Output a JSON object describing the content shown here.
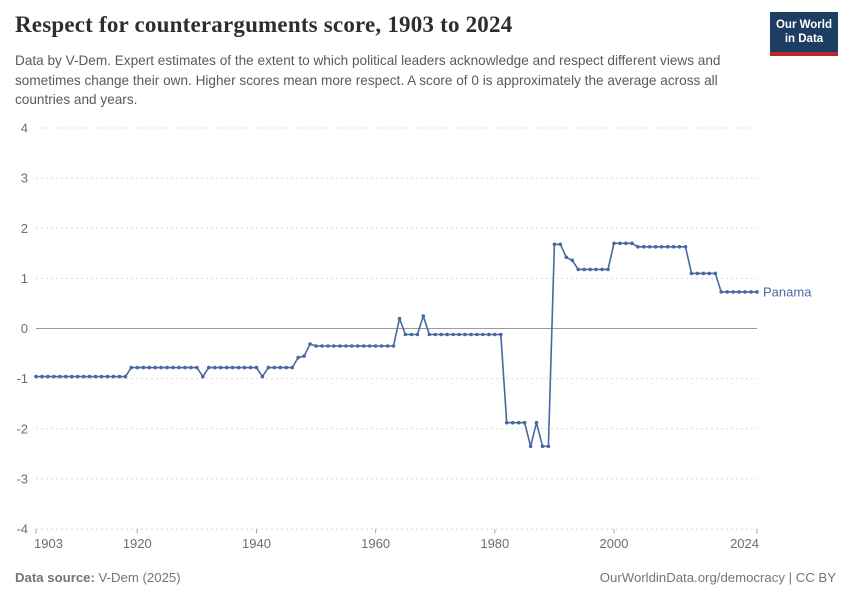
{
  "chart_data": {
    "type": "line",
    "title": "Respect for counterarguments score, 1903 to 2024",
    "subtitle": "Data by V-Dem. Expert estimates of the extent to which political leaders acknowledge and respect different views and sometimes change their own. Higher scores mean more respect. A score of 0 is approximately the average across all countries and years.",
    "xlim": [
      1903,
      2024
    ],
    "ylim": [
      -4,
      4
    ],
    "x_ticks": [
      1903,
      1920,
      1940,
      1960,
      1980,
      2000,
      2024
    ],
    "y_ticks": [
      4,
      3,
      2,
      1,
      0,
      -1,
      -2,
      -3,
      -4
    ],
    "grid": "horizontal-dashed",
    "zero_line": true,
    "legend_position": "end-of-line-label",
    "series": [
      {
        "name": "Panama",
        "color": "#4868a0",
        "year_start": 1903,
        "year_end": 2024,
        "values": [
          -0.96,
          -0.96,
          -0.96,
          -0.96,
          -0.96,
          -0.96,
          -0.96,
          -0.96,
          -0.96,
          -0.96,
          -0.96,
          -0.96,
          -0.96,
          -0.96,
          -0.96,
          -0.96,
          -0.78,
          -0.78,
          -0.78,
          -0.78,
          -0.78,
          -0.78,
          -0.78,
          -0.78,
          -0.78,
          -0.78,
          -0.78,
          -0.78,
          -0.96,
          -0.78,
          -0.78,
          -0.78,
          -0.78,
          -0.78,
          -0.78,
          -0.78,
          -0.78,
          -0.78,
          -0.96,
          -0.78,
          -0.78,
          -0.78,
          -0.78,
          -0.78,
          -0.58,
          -0.55,
          -0.31,
          -0.35,
          -0.35,
          -0.35,
          -0.35,
          -0.35,
          -0.35,
          -0.35,
          -0.35,
          -0.35,
          -0.35,
          -0.35,
          -0.35,
          -0.35,
          -0.35,
          0.2,
          -0.12,
          -0.12,
          -0.12,
          0.25,
          -0.12,
          -0.12,
          -0.12,
          -0.12,
          -0.12,
          -0.12,
          -0.12,
          -0.12,
          -0.12,
          -0.12,
          -0.12,
          -0.12,
          -0.12,
          -1.88,
          -1.88,
          -1.88,
          -1.88,
          -2.35,
          -1.88,
          -2.35,
          -2.35,
          1.68,
          1.68,
          1.42,
          1.36,
          1.18,
          1.18,
          1.18,
          1.18,
          1.18,
          1.18,
          1.7,
          1.7,
          1.7,
          1.7,
          1.63,
          1.63,
          1.63,
          1.63,
          1.63,
          1.63,
          1.63,
          1.63,
          1.63,
          1.1,
          1.1,
          1.1,
          1.1,
          1.1,
          0.73,
          0.73,
          0.73,
          0.73,
          0.73,
          0.73,
          0.73
        ]
      }
    ],
    "colors": {
      "gridline": "#d9d9d9",
      "zero_line": "#9a9a9a",
      "axis_label": "#6e6e6e",
      "tick_mark": "#a5a5a5"
    }
  },
  "header": {
    "logo": {
      "line1": "Our World",
      "line2": "in Data",
      "bg_color": "#1d3d63",
      "accent_color": "#be282d"
    }
  },
  "footer": {
    "source_label": "Data source:",
    "source_value": " V-Dem (2025)",
    "right_text": "OurWorldinData.org/democracy | CC BY"
  }
}
